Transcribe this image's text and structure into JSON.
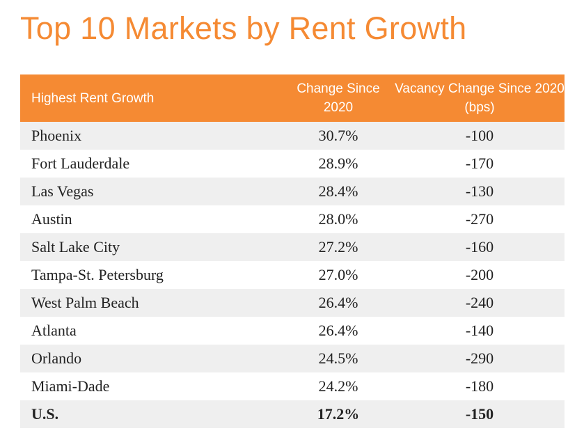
{
  "title": "Top 10 Markets by Rent Growth",
  "table": {
    "headers": {
      "market": "Highest Rent Growth",
      "change": "Change Since 2020",
      "vacancy": "Vacancy Change Since 2020 (bps)"
    },
    "rows": [
      {
        "market": "Phoenix",
        "change": "30.7%",
        "vacancy": "-100"
      },
      {
        "market": "Fort Lauderdale",
        "change": "28.9%",
        "vacancy": "-170"
      },
      {
        "market": "Las Vegas",
        "change": "28.4%",
        "vacancy": "-130"
      },
      {
        "market": "Austin",
        "change": "28.0%",
        "vacancy": "-270"
      },
      {
        "market": "Salt Lake City",
        "change": "27.2%",
        "vacancy": "-160"
      },
      {
        "market": "Tampa-St. Petersburg",
        "change": "27.0%",
        "vacancy": "-200"
      },
      {
        "market": "West Palm Beach",
        "change": "26.4%",
        "vacancy": "-240"
      },
      {
        "market": "Atlanta",
        "change": "26.4%",
        "vacancy": "-140"
      },
      {
        "market": "Orlando",
        "change": "24.5%",
        "vacancy": "-290"
      },
      {
        "market": "Miami-Dade",
        "change": "24.2%",
        "vacancy": "-180"
      }
    ],
    "total": {
      "market": "U.S.",
      "change": "17.2%",
      "vacancy": "-150"
    }
  },
  "colors": {
    "accent": "#f58a33",
    "row_band": "#efefef",
    "text": "#222222"
  }
}
